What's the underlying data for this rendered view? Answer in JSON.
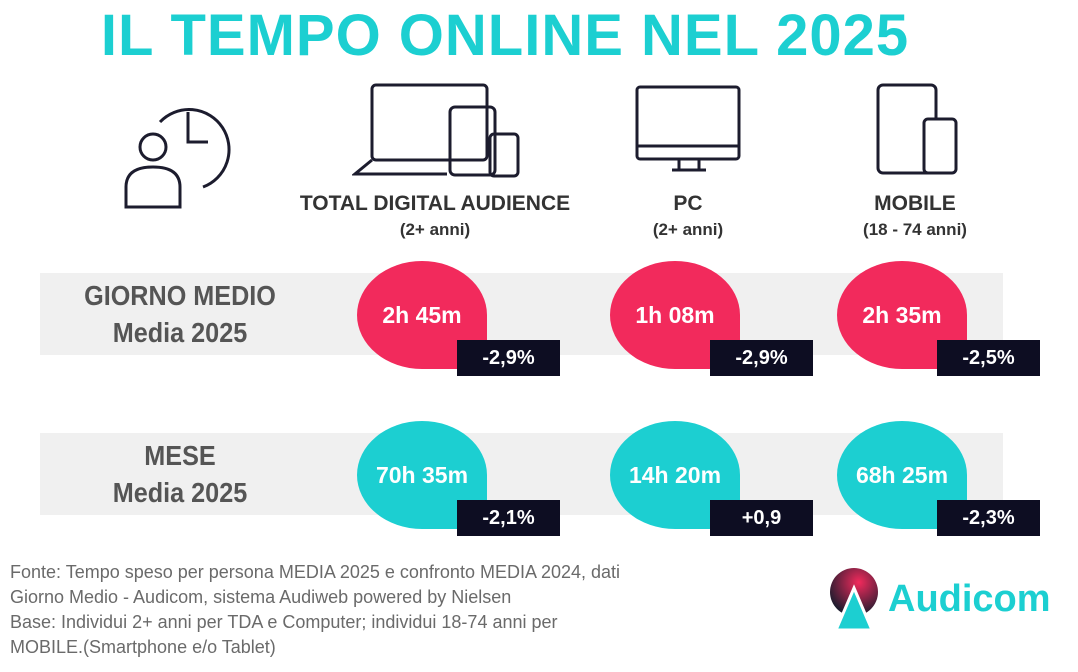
{
  "title": "IL TEMPO ONLINE NEL 2025",
  "columns": [
    {
      "label": "TOTAL DIGITAL AUDIENCE",
      "sub": "(2+ anni)"
    },
    {
      "label": "PC",
      "sub": "(2+ anni)"
    },
    {
      "label": "MOBILE",
      "sub": "(18 - 74 anni)"
    }
  ],
  "rows": [
    {
      "label": "GIORNO MEDIO",
      "sub": "Media 2025",
      "color": "#f22a5c",
      "cells": [
        {
          "value": "2h 45m",
          "change": "-2,9%"
        },
        {
          "value": "1h 08m",
          "change": "-2,9%"
        },
        {
          "value": "2h 35m",
          "change": "-2,5%"
        }
      ]
    },
    {
      "label": "MESE",
      "sub": "Media 2025",
      "color": "#1ccfd1",
      "cells": [
        {
          "value": "70h 35m",
          "change": "-2,1%"
        },
        {
          "value": "14h 20m",
          "change": "+0,9"
        },
        {
          "value": "68h 25m",
          "change": "-2,3%"
        }
      ]
    }
  ],
  "footer": [
    "Fonte: Tempo speso per persona MEDIA 2025 e confronto MEDIA 2024, dati",
    "Giorno Medio - Audicom, sistema Audiweb powered by Nielsen",
    "Base:  Individui 2+ anni per TDA e Computer; individui 18-74 anni per",
    "MOBILE.(Smartphone e/o Tablet)"
  ],
  "logo": "Audicom"
}
